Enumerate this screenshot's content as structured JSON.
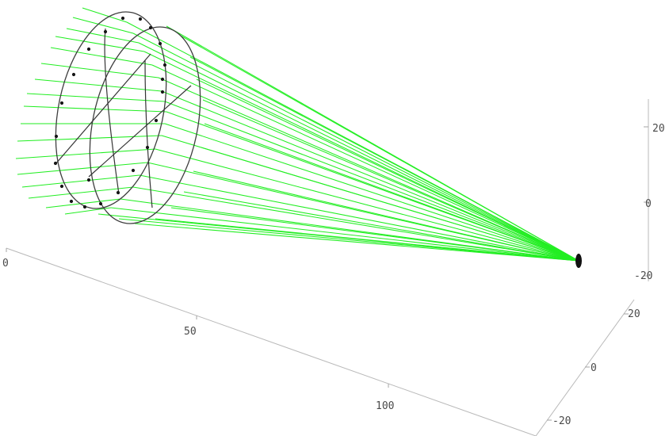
{
  "axes": {
    "x_ticks": [
      "0",
      "50",
      "100"
    ],
    "y_ticks": [
      "20",
      "0",
      "-20"
    ],
    "z_ticks": [
      "20",
      "0",
      "-20"
    ]
  },
  "colors": {
    "ray": "#22ee22",
    "ring": "#3e3e3e",
    "dot": "#161616",
    "axis": "#b9b9b9",
    "tick_text": "#4a4a4a",
    "background": "#ffffff"
  }
}
